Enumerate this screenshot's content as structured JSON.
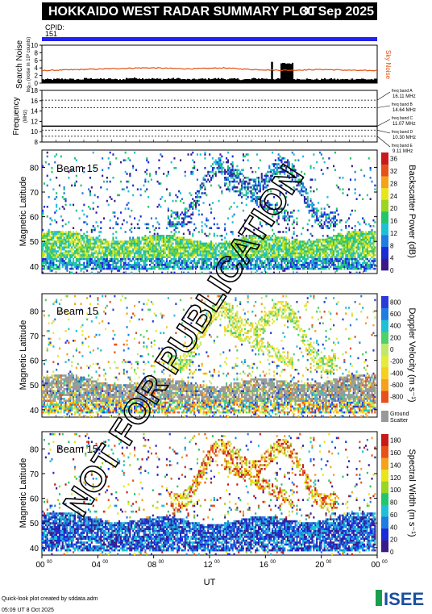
{
  "header": {
    "title": "HOKKAIDO WEST RADAR SUMMARY PLOT",
    "date": "30 Sep 2025",
    "cpid_label": "CPID:",
    "cpid_value": "151"
  },
  "colors": {
    "title_bg": "#000000",
    "cpid_bar": "#2222ee",
    "noise_line": "#e05010",
    "watermark": "#000000"
  },
  "watermark": "NOT FOR PUBLICATION",
  "chart_data": [
    {
      "type": "bar",
      "panel": "search-noise",
      "ylabel": "Search Noise",
      "ylabel_sub": "log₁₀ (noise in 10³ counts)",
      "ylim": [
        0,
        10
      ],
      "yticks": [
        "0",
        "2",
        "4",
        "6",
        "8",
        "10"
      ],
      "series": [
        {
          "name": "Sky Noise",
          "values": [
            3.3,
            3.4,
            3.5,
            3.6,
            3.7,
            3.8,
            3.9,
            4.0,
            4.0,
            3.9,
            3.8,
            3.8,
            3.9,
            4.0,
            3.8,
            3.6,
            3.5,
            3.4,
            3.4,
            3.5,
            3.6,
            3.5,
            3.4,
            3.3
          ]
        }
      ],
      "search_noise_values": [
        1.0,
        1.1,
        1.0,
        1.2,
        1.1,
        1.0,
        1.3,
        1.2,
        1.1,
        1.2,
        1.0,
        1.1,
        1.2,
        1.1,
        1.0,
        1.2,
        1.1,
        5.2,
        1.1,
        1.0,
        1.1,
        1.0,
        1.1,
        1.0
      ],
      "spike_hour": 16.4
    },
    {
      "type": "line",
      "panel": "frequency",
      "ylabel": "Frequency",
      "ylabel_sub": "(MHz)",
      "ylim": [
        8,
        18
      ],
      "yticks": [
        "8",
        "10",
        "12",
        "14",
        "16",
        "18"
      ],
      "freq_bands": [
        {
          "label": "freq band A",
          "value": "16.11 MHz",
          "mhz": 16.11
        },
        {
          "label": "freq band B",
          "value": "14.64 MHz",
          "mhz": 14.64
        },
        {
          "label": "freq band C",
          "value": "11.07 MHz",
          "mhz": 11.07
        },
        {
          "label": "freq band D",
          "value": "10.30 MHz",
          "mhz": 10.3
        },
        {
          "label": "freq band E",
          "value": "9.11 MHz",
          "mhz": 9.11
        }
      ],
      "operating_mhz": 11.07
    },
    {
      "type": "heatmap",
      "panel": "backscatter-power",
      "beam_label": "Beam 15",
      "ylabel": "Magnetic Latitude",
      "ylim": [
        37,
        87
      ],
      "yticks": [
        "40",
        "50",
        "60",
        "70",
        "80"
      ],
      "colorbar_label": "Backscatter Power (dB)",
      "colorbar_ticks": [
        "0",
        "4",
        "8",
        "12",
        "16",
        "20",
        "24",
        "28",
        "32",
        "36"
      ],
      "clim": [
        0,
        38
      ]
    },
    {
      "type": "heatmap",
      "panel": "doppler-velocity",
      "beam_label": "Beam 15",
      "ylabel": "Magnetic Latitude",
      "ylim": [
        37,
        87
      ],
      "yticks": [
        "40",
        "50",
        "60",
        "70",
        "80"
      ],
      "colorbar_label": "Doppler Velocity (m s⁻¹)",
      "colorbar_ticks": [
        "-800",
        "-600",
        "-400",
        "-200",
        "0",
        "200",
        "400",
        "600",
        "800"
      ],
      "clim": [
        -900,
        900
      ],
      "ground_scatter_label": [
        "Ground",
        "Scatter"
      ]
    },
    {
      "type": "heatmap",
      "panel": "spectral-width",
      "beam_label": "Beam 15",
      "ylabel": "Magnetic Latitude",
      "ylim": [
        37,
        87
      ],
      "yticks": [
        "40",
        "50",
        "60",
        "70",
        "80"
      ],
      "colorbar_label": "Spectral Width (m s⁻¹)",
      "colorbar_ticks": [
        "0",
        "20",
        "40",
        "60",
        "80",
        "100",
        "120",
        "140",
        "160",
        "180"
      ],
      "clim": [
        0,
        190
      ]
    }
  ],
  "xaxis": {
    "label": "UT",
    "xlim": [
      0,
      24
    ],
    "ticks": [
      {
        "hour": 0,
        "main": "00",
        "sup": "00"
      },
      {
        "hour": 4,
        "main": "04",
        "sup": "00"
      },
      {
        "hour": 8,
        "main": "08",
        "sup": "00"
      },
      {
        "hour": 12,
        "main": "12",
        "sup": "00"
      },
      {
        "hour": 16,
        "main": "16",
        "sup": "00"
      },
      {
        "hour": 20,
        "main": "20",
        "sup": "00"
      },
      {
        "hour": 24,
        "main": "00",
        "sup": "00"
      }
    ]
  },
  "footer": {
    "credit": "Quick-look plot created by sddata.adm",
    "timestamp": "05:09 UT  8 Oct 2025",
    "logo": "ISEE"
  }
}
